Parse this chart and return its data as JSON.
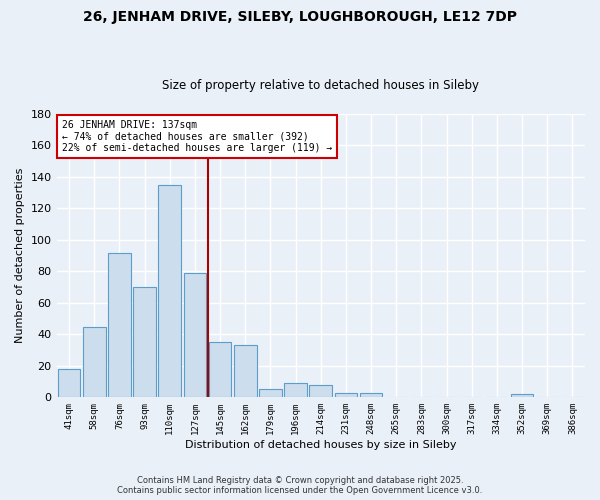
{
  "title": "26, JENHAM DRIVE, SILEBY, LOUGHBOROUGH, LE12 7DP",
  "subtitle": "Size of property relative to detached houses in Sileby",
  "xlabel": "Distribution of detached houses by size in Sileby",
  "ylabel": "Number of detached properties",
  "categories": [
    "41sqm",
    "58sqm",
    "76sqm",
    "93sqm",
    "110sqm",
    "127sqm",
    "145sqm",
    "162sqm",
    "179sqm",
    "196sqm",
    "214sqm",
    "231sqm",
    "248sqm",
    "265sqm",
    "283sqm",
    "300sqm",
    "317sqm",
    "334sqm",
    "352sqm",
    "369sqm",
    "386sqm"
  ],
  "values": [
    18,
    45,
    92,
    70,
    135,
    79,
    35,
    33,
    5,
    9,
    8,
    3,
    3,
    0,
    0,
    0,
    0,
    0,
    2,
    0,
    0
  ],
  "bar_color": "#ccdded",
  "bar_edge_color": "#5a9ec9",
  "vline_x": 5.5,
  "vline_color": "#aa0000",
  "annotation_line1": "26 JENHAM DRIVE: 137sqm",
  "annotation_line2": "← 74% of detached houses are smaller (392)",
  "annotation_line3": "22% of semi-detached houses are larger (119) →",
  "annotation_box_color": "#ffffff",
  "annotation_box_edge": "#cc0000",
  "ylim": [
    0,
    180
  ],
  "yticks": [
    0,
    20,
    40,
    60,
    80,
    100,
    120,
    140,
    160,
    180
  ],
  "background_color": "#eaf0f8",
  "grid_color": "#ffffff",
  "footer_line1": "Contains HM Land Registry data © Crown copyright and database right 2025.",
  "footer_line2": "Contains public sector information licensed under the Open Government Licence v3.0."
}
